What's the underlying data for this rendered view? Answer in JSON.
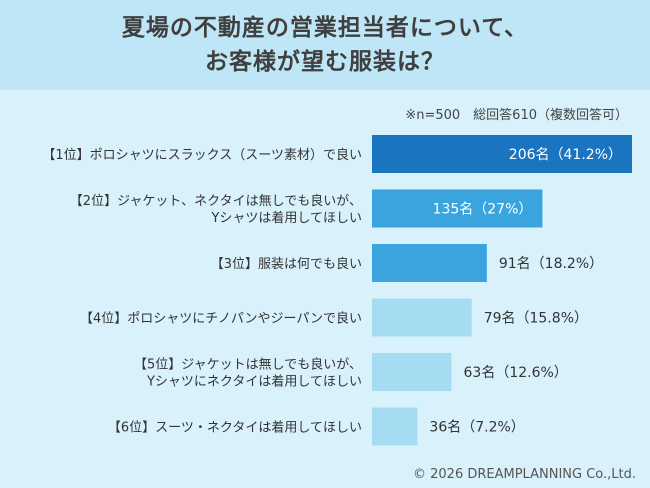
{
  "header": {
    "title_line1": "夏場の不動産の営業担当者について、",
    "title_line2": "お客様が望む服装は？"
  },
  "note": "※n=500　総回答610（複数回答可）",
  "footer": "© 2026 DREAMPLANNING Co.,Ltd.",
  "chart_data": {
    "type": "bar",
    "orientation": "horizontal",
    "title": "夏場の不動産の営業担当者について、お客様が望む服装は？",
    "categories": [
      [
        "【1位】ポロシャツにスラックス（スーツ素材）で良い"
      ],
      [
        "【2位】ジャケット、ネクタイは無しでも良いが、",
        "Yシャツは着用してほしい"
      ],
      [
        "【3位】服装は何でも良い"
      ],
      [
        "【4位】ポロシャツにチノパンやジーパンで良い"
      ],
      [
        "【5位】ジャケットは無しでも良いが、",
        "Yシャツにネクタイは着用してほしい"
      ],
      [
        "【6位】スーツ・ネクタイは着用してほしい"
      ]
    ],
    "values": [
      206,
      135,
      91,
      79,
      63,
      36
    ],
    "value_labels": [
      "206名（41.2%）",
      "135名（27%）",
      "91名（18.2%）",
      "79名（15.8%）",
      "63名（12.6%）",
      "36名（7.2%）"
    ],
    "colors": [
      "#1a74bf",
      "#3aa4de",
      "#3aa4de",
      "#a6dcf2",
      "#a6dcf2",
      "#a6dcf2"
    ],
    "label_inside": [
      true,
      true,
      false,
      false,
      false,
      false
    ],
    "label_inside_color": "#ffffff",
    "label_outside_color": "#333333",
    "xlim": [
      0,
      206
    ]
  }
}
